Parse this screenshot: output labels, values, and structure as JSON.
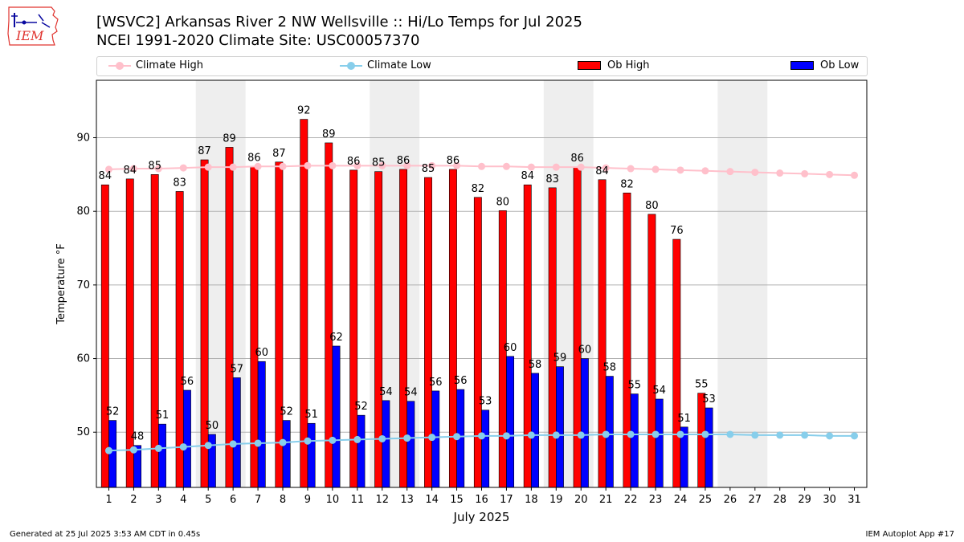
{
  "logo": {
    "text": "IEM",
    "icon": "iowa-state-outline-icon"
  },
  "header": {
    "title_line1": "[WSVC2] Arkansas River 2 NW Wellsville :: Hi/Lo Temps for Jul 2025",
    "title_line2": "NCEI 1991-2020 Climate Site: USC00057370"
  },
  "legend": {
    "climate_high": "Climate High",
    "climate_low": "Climate Low",
    "ob_high": "Ob High",
    "ob_low": "Ob Low"
  },
  "colors": {
    "ob_high": "#ff0000",
    "ob_low": "#0000ff",
    "climate_high": "#ffc0cb",
    "climate_low": "#87ceeb",
    "weekend_band": "#eeeeee",
    "grid": "#b0b0b0"
  },
  "footer": {
    "generated": "Generated at 25 Jul 2025 3:53 AM CDT in 0.45s",
    "app": "IEM Autoplot App #17"
  },
  "chart_data": {
    "type": "bar",
    "xlabel": "July 2025",
    "ylabel": "Temperature °F",
    "ylim": [
      42.5,
      97.8
    ],
    "xlim": [
      0.5,
      31.5
    ],
    "yticks": [
      50,
      60,
      70,
      80,
      90
    ],
    "grid": "horizontal",
    "legend_placement": "top",
    "categories": [
      "1",
      "2",
      "3",
      "4",
      "5",
      "6",
      "7",
      "8",
      "9",
      "10",
      "11",
      "12",
      "13",
      "14",
      "15",
      "16",
      "17",
      "18",
      "19",
      "20",
      "21",
      "22",
      "23",
      "24",
      "25",
      "26",
      "27",
      "28",
      "29",
      "30",
      "31"
    ],
    "shaded_days": [
      [
        4.5,
        6.5
      ],
      [
        11.5,
        13.5
      ],
      [
        18.5,
        20.5
      ],
      [
        25.5,
        27.5
      ]
    ],
    "series": [
      {
        "name": "Ob High",
        "kind": "bar",
        "values": [
          83.6,
          84.4,
          85.0,
          82.7,
          87.0,
          88.7,
          86.1,
          86.7,
          92.5,
          89.3,
          85.6,
          85.4,
          85.7,
          84.6,
          85.7,
          81.9,
          80.1,
          83.6,
          83.2,
          86.0,
          84.3,
          82.5,
          79.6,
          76.2,
          55.3,
          null,
          null,
          null,
          null,
          null,
          null
        ],
        "labels": [
          "84",
          "84",
          "85",
          "83",
          "87",
          "89",
          "86",
          "87",
          "92",
          "89",
          "86",
          "85",
          "86",
          "85",
          "86",
          "82",
          "80",
          "84",
          "83",
          "86",
          "84",
          "82",
          "80",
          "76",
          "55",
          null,
          null,
          null,
          null,
          null,
          null
        ]
      },
      {
        "name": "Ob Low",
        "kind": "bar",
        "values": [
          51.6,
          48.2,
          51.1,
          55.7,
          49.7,
          57.4,
          59.6,
          51.6,
          51.2,
          61.7,
          52.3,
          54.3,
          54.2,
          55.6,
          55.8,
          53.0,
          60.3,
          58.0,
          58.9,
          60.0,
          57.6,
          55.2,
          54.5,
          50.7,
          53.3,
          null,
          null,
          null,
          null,
          null,
          null
        ],
        "labels": [
          "52",
          "48",
          "51",
          "56",
          "50",
          "57",
          "60",
          "52",
          "51",
          "62",
          "52",
          "54",
          "54",
          "56",
          "56",
          "53",
          "60",
          "58",
          "59",
          "60",
          "58",
          "55",
          "54",
          "51",
          "53",
          null,
          null,
          null,
          null,
          null,
          null
        ]
      },
      {
        "name": "Climate High",
        "kind": "line",
        "values": [
          85.7,
          85.8,
          85.8,
          85.9,
          86.0,
          86.0,
          86.1,
          86.1,
          86.2,
          86.2,
          86.2,
          86.2,
          86.2,
          86.2,
          86.2,
          86.1,
          86.1,
          86.0,
          86.0,
          86.0,
          85.9,
          85.8,
          85.7,
          85.6,
          85.5,
          85.4,
          85.3,
          85.2,
          85.1,
          85.0,
          84.9
        ]
      },
      {
        "name": "Climate Low",
        "kind": "line",
        "values": [
          47.5,
          47.6,
          47.8,
          48.0,
          48.2,
          48.4,
          48.5,
          48.6,
          48.8,
          48.9,
          49.0,
          49.1,
          49.2,
          49.3,
          49.4,
          49.5,
          49.5,
          49.6,
          49.6,
          49.6,
          49.7,
          49.7,
          49.7,
          49.7,
          49.7,
          49.7,
          49.6,
          49.6,
          49.6,
          49.5,
          49.5
        ]
      }
    ]
  }
}
